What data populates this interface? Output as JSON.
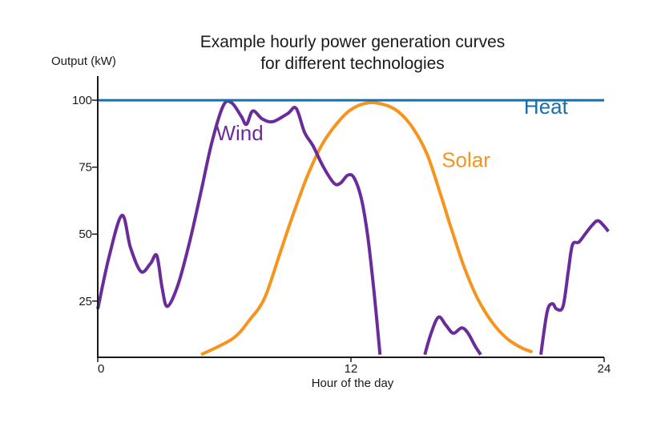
{
  "chart_data": {
    "type": "line",
    "title_lines": [
      "Example hourly power generation curves",
      "for different technologies"
    ],
    "ylabel": "Output (kW)",
    "xlabel": "Hour of the day",
    "xlim": [
      0,
      24
    ],
    "ylim": [
      4,
      109
    ],
    "x_ticks": [
      0,
      12,
      24
    ],
    "y_ticks": [
      25,
      50,
      75,
      100
    ],
    "grid": false,
    "series": [
      {
        "name": "Heat",
        "color": "#1b6fa8",
        "label_at": [
          20.2,
          95
        ],
        "points": [
          [
            0,
            100
          ],
          [
            24,
            100
          ]
        ]
      },
      {
        "name": "Solar",
        "color": "#f7941d",
        "label_at": [
          16.3,
          75
        ],
        "points": [
          [
            4.9,
            5
          ],
          [
            6.4,
            11
          ],
          [
            7.2,
            18
          ],
          [
            7.9,
            26
          ],
          [
            8.6,
            42
          ],
          [
            9.2,
            56
          ],
          [
            9.9,
            71
          ],
          [
            10.6,
            83
          ],
          [
            11.3,
            91
          ],
          [
            12.0,
            96.5
          ],
          [
            12.8,
            99
          ],
          [
            13.5,
            98.5
          ],
          [
            14.2,
            96
          ],
          [
            14.9,
            90
          ],
          [
            15.6,
            80
          ],
          [
            16.2,
            66
          ],
          [
            16.8,
            51
          ],
          [
            17.4,
            37
          ],
          [
            18.0,
            26
          ],
          [
            18.7,
            17
          ],
          [
            19.4,
            11
          ],
          [
            20.1,
            7.5
          ],
          [
            20.6,
            6
          ]
        ]
      },
      {
        "name": "Wind",
        "color": "#6a2c9a",
        "label_at": [
          5.6,
          85
        ],
        "segments": [
          [
            [
              0,
              22
            ],
            [
              0.55,
              42
            ],
            [
              1.15,
              57
            ],
            [
              1.55,
              45
            ],
            [
              2.05,
              36
            ],
            [
              2.5,
              39
            ],
            [
              2.8,
              42
            ],
            [
              3.05,
              30
            ],
            [
              3.3,
              23
            ],
            [
              3.8,
              31
            ],
            [
              4.35,
              47
            ],
            [
              4.9,
              66
            ],
            [
              5.4,
              84
            ],
            [
              5.95,
              98
            ],
            [
              6.35,
              99
            ],
            [
              6.8,
              94
            ],
            [
              7.05,
              91
            ],
            [
              7.35,
              96
            ],
            [
              7.8,
              93
            ],
            [
              8.3,
              92
            ],
            [
              9.0,
              95
            ],
            [
              9.4,
              97
            ],
            [
              9.8,
              88
            ],
            [
              10.2,
              83
            ],
            [
              10.7,
              75
            ],
            [
              11.2,
              69
            ],
            [
              11.5,
              69
            ],
            [
              11.85,
              72
            ],
            [
              12.15,
              71
            ],
            [
              12.5,
              63
            ],
            [
              12.8,
              49
            ],
            [
              13.1,
              28
            ],
            [
              13.38,
              5
            ]
          ],
          [
            [
              15.5,
              5
            ],
            [
              15.8,
              13
            ],
            [
              16.15,
              19
            ],
            [
              16.5,
              16
            ],
            [
              16.85,
              13
            ],
            [
              17.25,
              15
            ],
            [
              17.55,
              13
            ],
            [
              17.9,
              8
            ],
            [
              18.15,
              5
            ]
          ],
          [
            [
              21.0,
              5
            ],
            [
              21.3,
              21
            ],
            [
              21.55,
              24
            ],
            [
              21.75,
              22
            ],
            [
              22.05,
              23
            ],
            [
              22.3,
              36
            ],
            [
              22.5,
              46
            ],
            [
              22.8,
              47
            ],
            [
              23.1,
              50
            ],
            [
              23.4,
              53
            ],
            [
              23.7,
              55
            ],
            [
              24.0,
              53
            ],
            [
              24.2,
              51
            ]
          ]
        ]
      }
    ]
  }
}
